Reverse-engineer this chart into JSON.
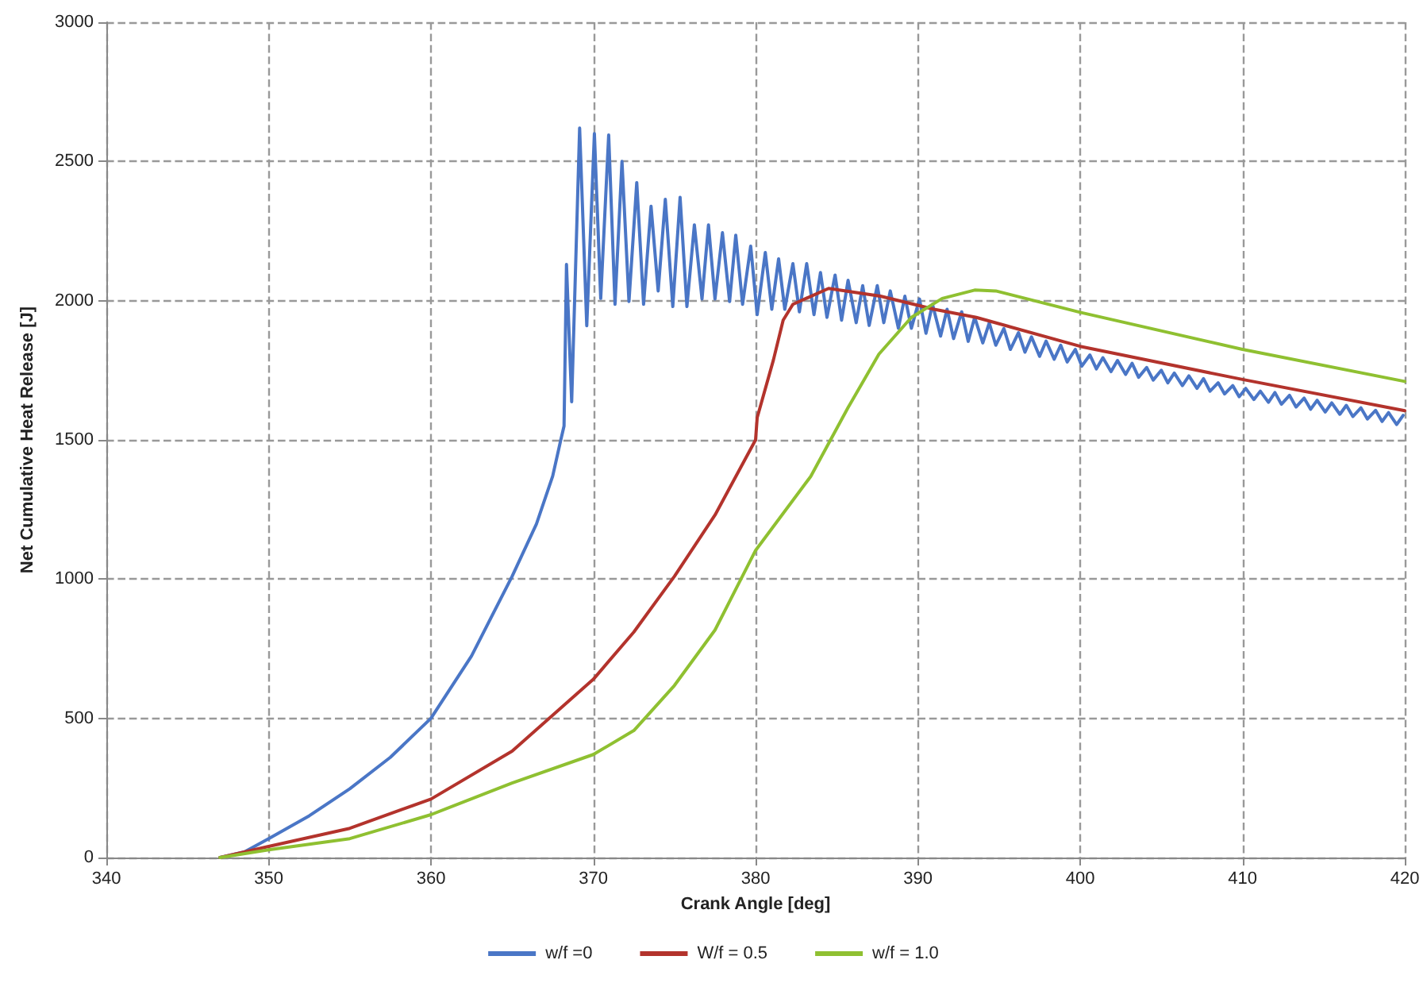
{
  "chart_data": {
    "type": "line",
    "xlabel": "Crank Angle [deg]",
    "ylabel": "Net Cumulative Heat Release [J]",
    "xlim": [
      340,
      420
    ],
    "xticks": [
      340,
      350,
      360,
      370,
      380,
      390,
      400,
      410,
      420
    ],
    "ylim": [
      0,
      3000
    ],
    "yticks": [
      0,
      500,
      1000,
      1500,
      2000,
      2500,
      3000
    ],
    "grid": true,
    "legend": "bottom",
    "marker": "none",
    "line_style": "solid",
    "series": [
      {
        "name": "w/f =0",
        "color": "#4a76c6",
        "x": [
          347,
          348.5,
          350,
          352.5,
          355,
          357.5,
          360,
          362.5,
          365,
          366.5,
          367.5,
          368,
          368.2,
          368.35,
          368.67,
          369.16,
          369.6,
          370.07,
          370.46,
          370.95,
          371.34,
          371.77,
          372.2,
          372.68,
          373.1,
          373.56,
          374.0,
          374.44,
          374.9,
          375.35,
          375.77,
          376.23,
          376.7,
          377.1,
          377.5,
          377.96,
          378.4,
          378.78,
          379.2,
          379.7,
          380.1,
          380.6,
          381.0,
          381.42,
          381.8,
          382.3,
          382.7,
          383.15,
          383.6,
          384.0,
          384.4,
          384.9,
          385.3,
          385.7,
          386.2,
          386.6,
          387.0,
          387.5,
          387.9,
          388.3,
          388.8,
          389.2,
          389.6,
          390.1,
          390.5,
          390.9,
          391.4,
          391.8,
          392.2,
          392.7,
          393.1,
          393.5,
          394.0,
          394.4,
          394.8,
          395.3,
          395.7,
          396.2,
          396.6,
          397.0,
          397.5,
          397.9,
          398.4,
          398.8,
          399.2,
          399.7,
          400.1,
          400.6,
          401.0,
          401.4,
          401.9,
          402.3,
          402.8,
          403.2,
          403.6,
          404.1,
          404.5,
          405.0,
          405.4,
          405.8,
          406.3,
          406.7,
          407.2,
          407.6,
          408.0,
          408.5,
          408.9,
          409.4,
          409.8,
          410.2,
          410.7,
          411.1,
          411.6,
          412.0,
          412.4,
          412.9,
          413.3,
          413.8,
          414.2,
          414.6,
          415.1,
          415.5,
          416.0,
          416.4,
          416.8,
          417.3,
          417.7,
          418.2,
          418.6,
          419.0,
          419.5,
          419.9
        ],
        "values": [
          0,
          20,
          68,
          150,
          247,
          360,
          500,
          724,
          1010,
          1198,
          1370,
          1500,
          1550,
          2130,
          1637,
          2620,
          1910,
          2600,
          2008,
          2595,
          1987,
          2500,
          1997,
          2424,
          1987,
          2339,
          2035,
          2364,
          1979,
          2371,
          1979,
          2272,
          2006,
          2272,
          2006,
          2244,
          1997,
          2235,
          1987,
          2196,
          1950,
          2173,
          1969,
          2150,
          1969,
          2133,
          1960,
          2133,
          1950,
          2101,
          1940,
          2092,
          1930,
          2073,
          1921,
          2054,
          1911,
          2054,
          1921,
          2035,
          1901,
          2016,
          1901,
          2006,
          1883,
          1987,
          1873,
          1969,
          1864,
          1960,
          1854,
          1940,
          1848,
          1920,
          1840,
          1900,
          1825,
          1885,
          1815,
          1870,
          1800,
          1855,
          1790,
          1840,
          1780,
          1825,
          1765,
          1805,
          1755,
          1795,
          1745,
          1785,
          1735,
          1775,
          1725,
          1760,
          1715,
          1750,
          1705,
          1740,
          1695,
          1730,
          1685,
          1720,
          1675,
          1705,
          1665,
          1695,
          1655,
          1685,
          1645,
          1675,
          1635,
          1670,
          1628,
          1660,
          1618,
          1650,
          1610,
          1642,
          1600,
          1633,
          1592,
          1624,
          1584,
          1615,
          1575,
          1606,
          1566,
          1598,
          1555,
          1588
        ]
      },
      {
        "name": "W/f = 0.5",
        "color": "#b3332c",
        "x": [
          347,
          350,
          355,
          360,
          365,
          370,
          372.5,
          375,
          377.5,
          380,
          380.1,
          381.1,
          381.7,
          382.3,
          384.5,
          387.7,
          391,
          393.6,
          400,
          410,
          420
        ],
        "values": [
          0,
          40,
          105,
          210,
          382,
          640,
          810,
          1010,
          1230,
          1500,
          1580,
          1787,
          1930,
          1987,
          2044,
          2016,
          1969,
          1940,
          1836,
          1717,
          1605
        ]
      },
      {
        "name": "w/f = 1.0",
        "color": "#8fc031",
        "x": [
          347,
          350,
          355,
          360,
          365,
          370,
          372.5,
          375,
          377.5,
          380,
          383.4,
          385.7,
          387.6,
          389.6,
          391.5,
          393.5,
          394.8,
          400,
          410,
          420
        ],
        "values": [
          0,
          28,
          68,
          154,
          268,
          370,
          456,
          618,
          817,
          1103,
          1369,
          1616,
          1808,
          1940,
          2008,
          2038,
          2035,
          1958,
          1825,
          1710
        ]
      }
    ]
  }
}
